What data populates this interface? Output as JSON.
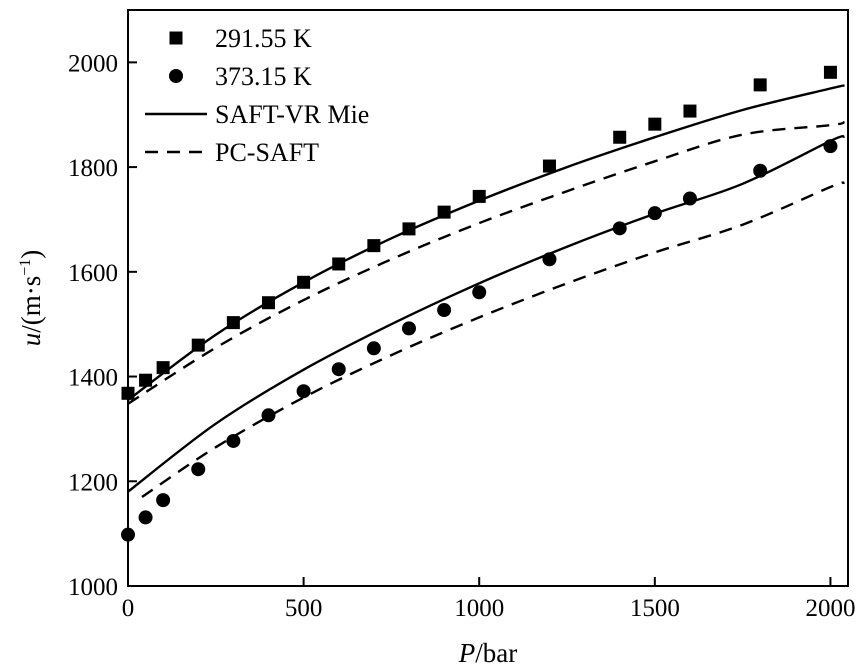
{
  "chart_data": {
    "type": "scatter",
    "title": "",
    "xlabel": {
      "var": "P",
      "unit": "/bar"
    },
    "ylabel": {
      "var": "u",
      "unit": "/(m·s",
      "sup": "−1",
      "close": ")"
    },
    "xlim": [
      0,
      2050
    ],
    "ylim": [
      1000,
      2100
    ],
    "xticks": [
      0,
      500,
      1000,
      1500,
      2000
    ],
    "xtick_labels": [
      "0",
      "500",
      "1000",
      "1500",
      "2000"
    ],
    "yticks": [
      1000,
      1200,
      1400,
      1600,
      1800,
      2000
    ],
    "ytick_labels": [
      "1000",
      "1200",
      "1400",
      "1600",
      "1800",
      "2000"
    ],
    "grid": false,
    "legend_position": "top-left",
    "series": [
      {
        "name": "291.55 K",
        "kind": "markers",
        "marker": "square",
        "x": [
          0,
          50,
          100,
          200,
          300,
          400,
          500,
          600,
          700,
          800,
          900,
          1000,
          1200,
          1400,
          1500,
          1600,
          1800,
          2000
        ],
        "y": [
          1368,
          1393,
          1417,
          1460,
          1503,
          1541,
          1580,
          1615,
          1650,
          1682,
          1714,
          1744,
          1802,
          1857,
          1882,
          1907,
          1957,
          1981
        ]
      },
      {
        "name": "373.15 K",
        "kind": "markers",
        "marker": "circle",
        "x": [
          0,
          50,
          100,
          200,
          300,
          400,
          500,
          600,
          700,
          800,
          900,
          1000,
          1200,
          1400,
          1500,
          1600,
          1800,
          2000
        ],
        "y": [
          1098,
          1131,
          1164,
          1223,
          1277,
          1326,
          1372,
          1414,
          1454,
          1492,
          1527,
          1561,
          1624,
          1683,
          1712,
          1740,
          1793,
          1840
        ]
      },
      {
        "name": "SAFT-VR Mie",
        "kind": "line",
        "dash": "solid",
        "legend": true,
        "x": [
          0,
          250,
          500,
          750,
          1000,
          1250,
          1500,
          1750,
          2000,
          2040
        ],
        "y": [
          1355,
          1480,
          1580,
          1664,
          1736,
          1800,
          1857,
          1909,
          1950,
          1956
        ]
      },
      {
        "name": "SAFT-VR Mie (373.15 K)",
        "kind": "line",
        "dash": "solid",
        "legend": false,
        "x": [
          0,
          250,
          500,
          750,
          1000,
          1250,
          1500,
          1750,
          2000,
          2040
        ],
        "y": [
          1180,
          1310,
          1413,
          1500,
          1578,
          1648,
          1711,
          1768,
          1850,
          1858
        ]
      },
      {
        "name": "PC-SAFT",
        "kind": "line",
        "dash": "dashed",
        "legend": true,
        "x": [
          0,
          250,
          500,
          750,
          1000,
          1250,
          1500,
          1750,
          2000,
          2040
        ],
        "y": [
          1348,
          1455,
          1546,
          1624,
          1693,
          1754,
          1811,
          1862,
          1880,
          1886
        ]
      },
      {
        "name": "PC-SAFT (373.15 K)",
        "kind": "line",
        "dash": "dashed",
        "legend": false,
        "x": [
          40,
          250,
          500,
          750,
          1000,
          1250,
          1500,
          1750,
          2000,
          2040
        ],
        "y": [
          1170,
          1265,
          1360,
          1441,
          1513,
          1578,
          1637,
          1690,
          1762,
          1770
        ]
      }
    ]
  }
}
